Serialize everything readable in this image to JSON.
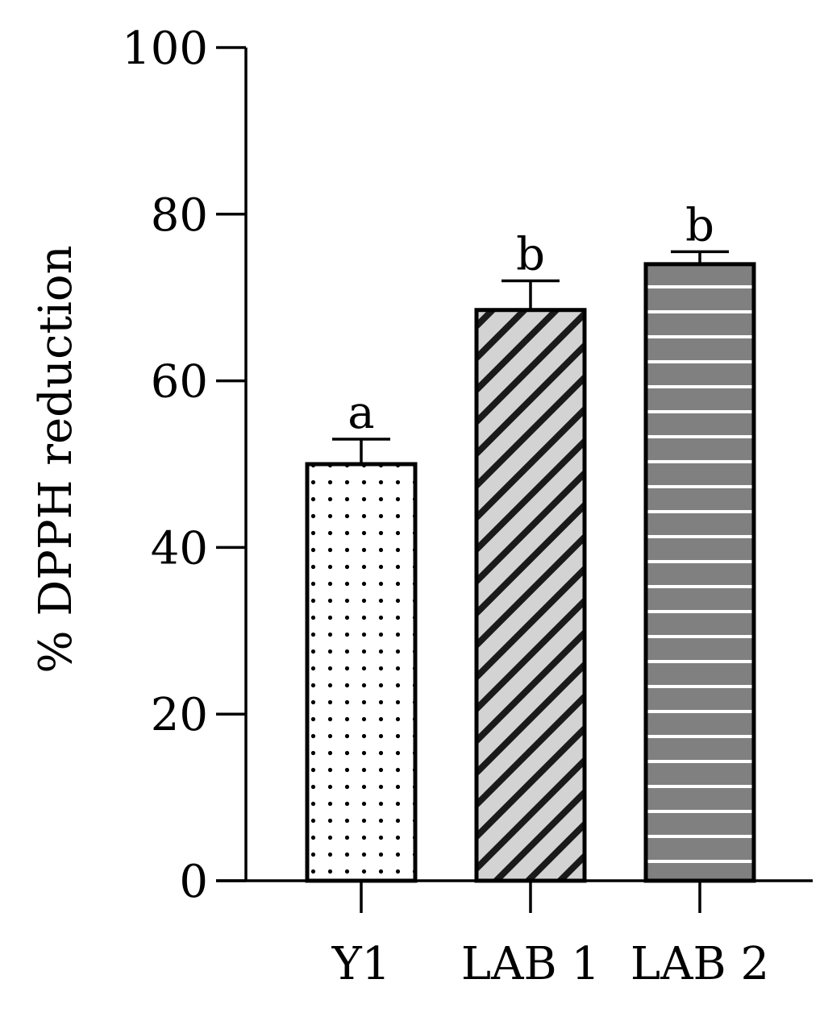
{
  "chart_data": {
    "type": "bar",
    "title": "",
    "xlabel": "",
    "ylabel": "% DPPH reduction",
    "ylim": [
      0,
      100
    ],
    "yticks": [
      "0",
      "20",
      "40",
      "60",
      "80",
      "100"
    ],
    "categories": [
      "Y1",
      "LAB 1",
      "LAB 2"
    ],
    "values": [
      50,
      68.5,
      74
    ],
    "errors": [
      3,
      3.5,
      1.5
    ],
    "significance": [
      "a",
      "b",
      "b"
    ],
    "patterns": [
      "dots",
      "diagonal-hatch",
      "horizontal-lines"
    ],
    "fills": [
      "#ffffff",
      "#d3d3d3",
      "#808080"
    ],
    "grid": false,
    "legend": "none"
  }
}
